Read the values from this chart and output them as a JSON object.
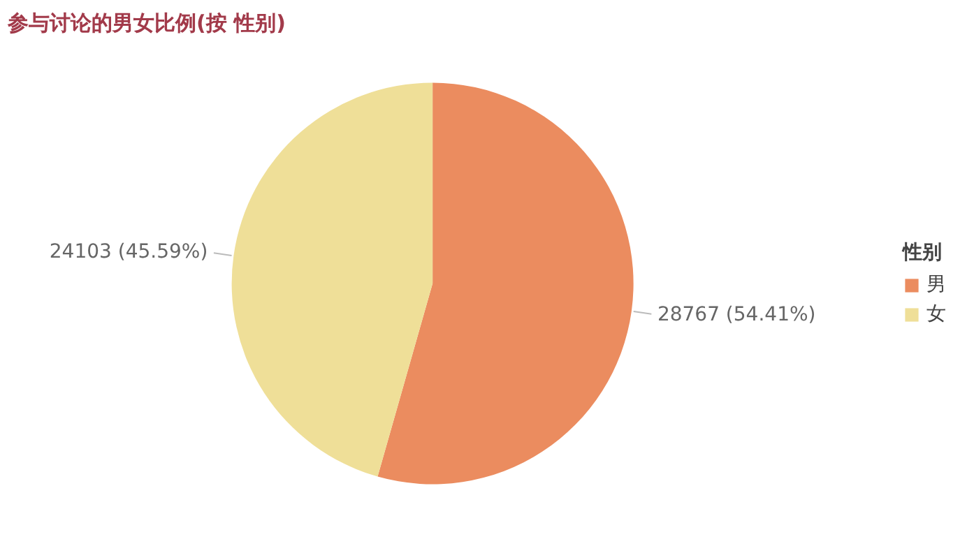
{
  "chart_data": {
    "type": "pie",
    "title": "参与讨论的男女比例(按 性别)",
    "legend_title": "性别",
    "legend": "right",
    "categories": [
      "男",
      "女"
    ],
    "values": [
      28767,
      24103
    ],
    "colors": [
      "#eb8c5f",
      "#efdf98"
    ],
    "value_labels": [
      "28767 (54.41%)",
      "24103 (45.59%)"
    ]
  }
}
